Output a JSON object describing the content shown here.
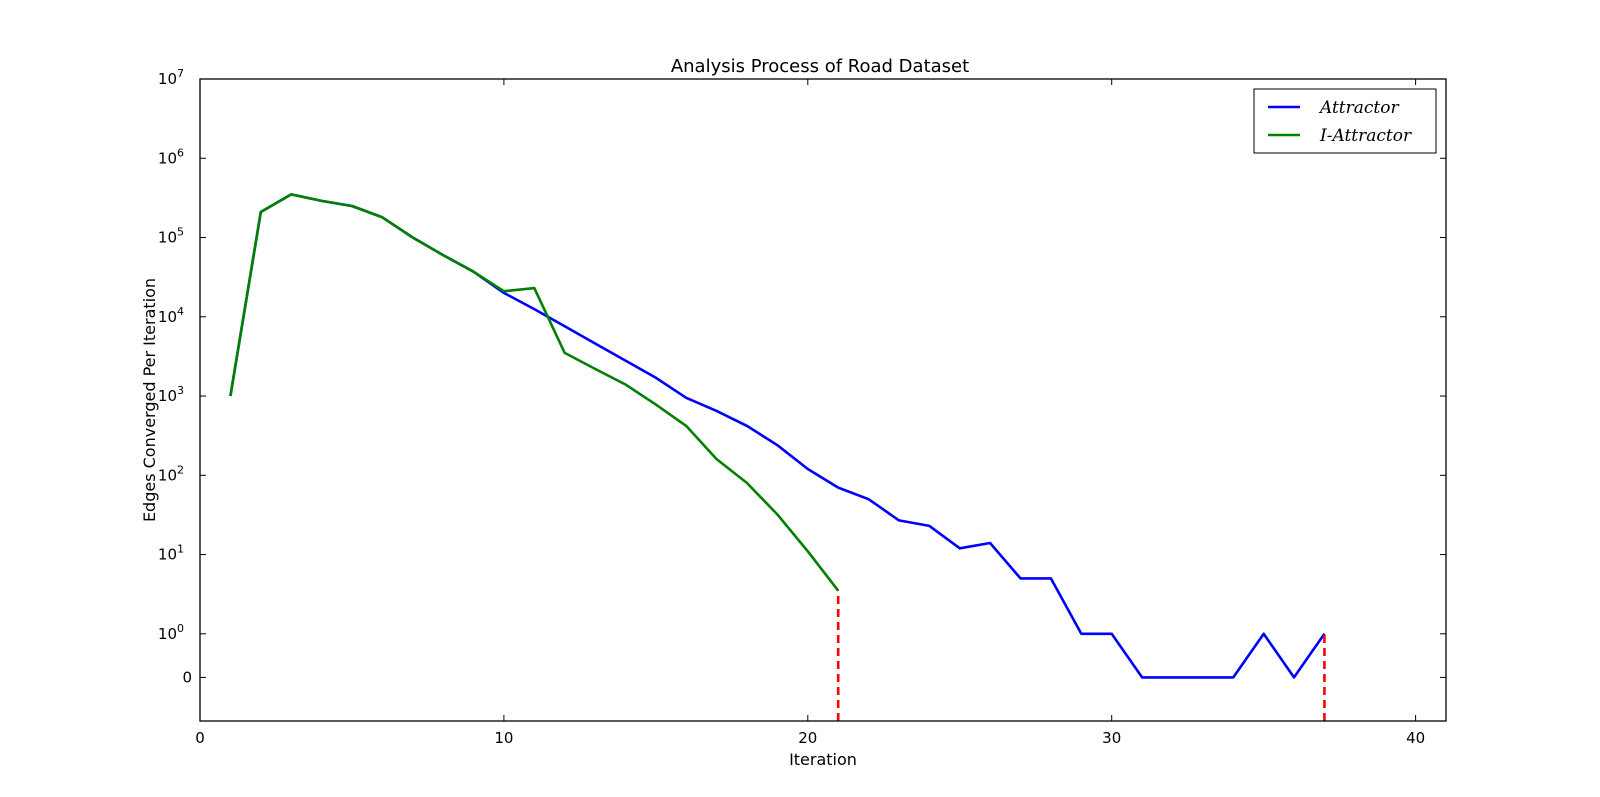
{
  "chart_data": {
    "type": "line",
    "title": "Analysis Process of Road Dataset",
    "xlabel": "Iteration",
    "ylabel": "Edges Converged Per Iteration",
    "xlim": [
      0,
      41
    ],
    "x_ticks": [
      0,
      10,
      20,
      30,
      40
    ],
    "y_scale": "symlog",
    "y_ticks": [
      {
        "value": 0,
        "label": "0"
      },
      {
        "value": 1,
        "base": "10",
        "exp": "0"
      },
      {
        "value": 10,
        "base": "10",
        "exp": "1"
      },
      {
        "value": 100,
        "base": "10",
        "exp": "2"
      },
      {
        "value": 1000,
        "base": "10",
        "exp": "3"
      },
      {
        "value": 10000,
        "base": "10",
        "exp": "4"
      },
      {
        "value": 100000,
        "base": "10",
        "exp": "5"
      },
      {
        "value": 1000000,
        "base": "10",
        "exp": "6"
      },
      {
        "value": 10000000,
        "base": "10",
        "exp": "7"
      }
    ],
    "grid": false,
    "legend_position": "top-right",
    "series": [
      {
        "name": "Attractor",
        "color": "#0000ff",
        "x": [
          1,
          2,
          3,
          4,
          5,
          6,
          7,
          8,
          9,
          10,
          11,
          12,
          13,
          14,
          15,
          16,
          17,
          18,
          19,
          20,
          21,
          22,
          23,
          24,
          25,
          26,
          27,
          28,
          29,
          30,
          31,
          32,
          33,
          34,
          35,
          36,
          37
        ],
        "y": [
          1000,
          210000,
          350000,
          290000,
          250000,
          180000,
          100000,
          60000,
          37000,
          20000,
          12500,
          7600,
          4600,
          2800,
          1700,
          950,
          650,
          420,
          240,
          120,
          70,
          50,
          27,
          23,
          12,
          14,
          5,
          5,
          1,
          1,
          0,
          0,
          0,
          0,
          1,
          0,
          1
        ]
      },
      {
        "name": "I-Attractor",
        "color": "#008000",
        "x": [
          1,
          2,
          3,
          4,
          5,
          6,
          7,
          8,
          9,
          10,
          11,
          12,
          13,
          14,
          15,
          16,
          17,
          18,
          19,
          20,
          21
        ],
        "y": [
          1000,
          210000,
          350000,
          290000,
          250000,
          180000,
          100000,
          60000,
          37000,
          21000,
          23000,
          3500,
          2200,
          1400,
          780,
          420,
          160,
          80,
          32,
          11,
          3.5
        ]
      }
    ],
    "markers": [
      {
        "x": 21,
        "y": 3.5,
        "color": "#ff0000",
        "style": "dashed"
      },
      {
        "x": 37,
        "y": 1,
        "color": "#ff0000",
        "style": "dashed"
      }
    ]
  }
}
